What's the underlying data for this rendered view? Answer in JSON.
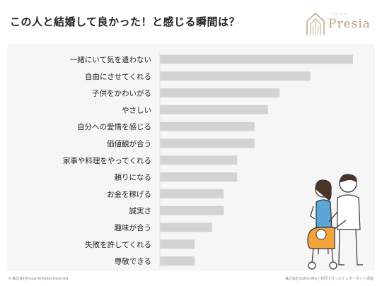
{
  "header": {
    "title": "この人と結婚して良かった！と感じる瞬間は？",
    "brand": "Presia",
    "brand_small": "プレシア"
  },
  "footer": {
    "copyright": "© 株式会社Presia All Rights Reserved",
    "source": "株式会社SUNCOREと共同で行ったインターネット調査"
  },
  "colors": {
    "bar": "#d3d3d3",
    "panel": "#f6f6f6",
    "brand": "#b9a07a"
  },
  "chart_data": {
    "type": "bar",
    "orientation": "horizontal",
    "categories": [
      "一緒にいて気を遣わない",
      "自由にさせてくれる",
      "子供をかわいがる",
      "やさしい",
      "自分への愛情を感じる",
      "価値観が合う",
      "家事や料理をやってくれる",
      "頼りになる",
      "お金を稼げる",
      "誠実さ",
      "趣味が合う",
      "失敗を許してくれる",
      "尊敬できる"
    ],
    "values": [
      100,
      78,
      62,
      56,
      49,
      49,
      40,
      40,
      33,
      33,
      27,
      18,
      18
    ],
    "grid": false,
    "legend": false
  }
}
